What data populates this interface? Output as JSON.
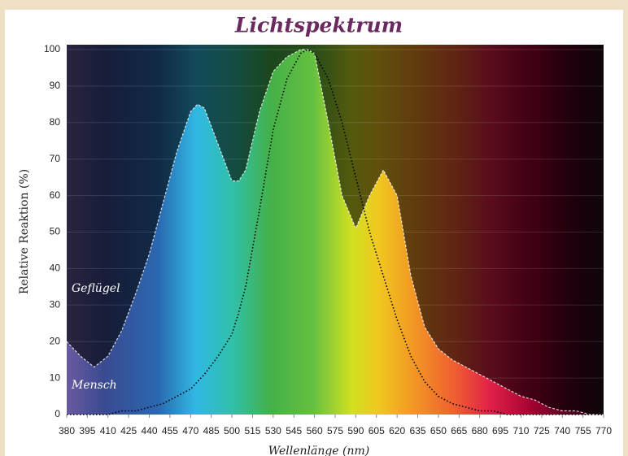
{
  "chart_data": {
    "type": "area",
    "title": "Lichtspektrum",
    "x_label": "Wellenlänge (nm)",
    "y_label": "Relative Reaktion (%)",
    "x": [
      380,
      390,
      400,
      410,
      420,
      430,
      440,
      450,
      460,
      470,
      475,
      480,
      490,
      500,
      505,
      510,
      520,
      530,
      540,
      550,
      555,
      560,
      570,
      580,
      590,
      600,
      610,
      620,
      630,
      640,
      650,
      660,
      670,
      680,
      690,
      700,
      710,
      720,
      730,
      740,
      750,
      760,
      770
    ],
    "series": [
      {
        "name": "Geflügel",
        "color": "#ffffff",
        "values": [
          20,
          16,
          13,
          16,
          23,
          33,
          44,
          58,
          72,
          83,
          85,
          84,
          74,
          64,
          64,
          67,
          83,
          94,
          98,
          100,
          100,
          99,
          80,
          60,
          51,
          60,
          67,
          60,
          38,
          24,
          18,
          15,
          13,
          11,
          9,
          7,
          5,
          4,
          2,
          1,
          1,
          0,
          0
        ]
      },
      {
        "name": "Mensch",
        "color": "#000000",
        "values": [
          0,
          0,
          0,
          0,
          1,
          1,
          2,
          3,
          5,
          7,
          9,
          11,
          16,
          22,
          28,
          35,
          56,
          78,
          92,
          99,
          100,
          99,
          92,
          80,
          65,
          50,
          38,
          26,
          16,
          9,
          5,
          3,
          2,
          1,
          1,
          0,
          0,
          0,
          0,
          0,
          0,
          0,
          0
        ]
      }
    ],
    "xlim": [
      380,
      770
    ],
    "ylim": [
      0,
      100
    ],
    "xticks": [
      380,
      395,
      410,
      425,
      440,
      455,
      470,
      485,
      500,
      515,
      530,
      545,
      560,
      575,
      590,
      605,
      620,
      635,
      650,
      665,
      680,
      695,
      710,
      725,
      740,
      755,
      770
    ],
    "yticks": [
      0,
      10,
      20,
      30,
      40,
      50,
      60,
      70,
      80,
      90,
      100
    ],
    "grid": true
  }
}
